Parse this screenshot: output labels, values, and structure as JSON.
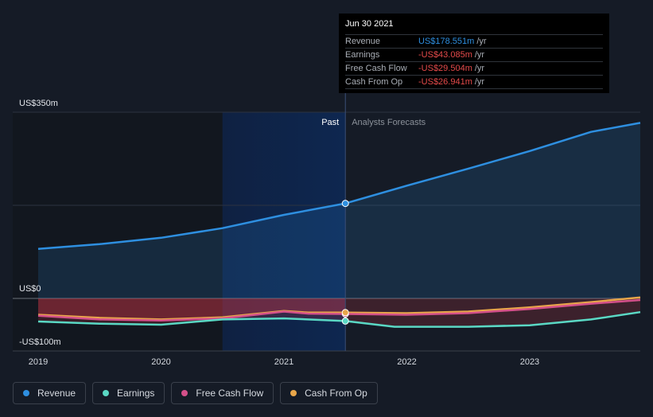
{
  "chart_data": {
    "type": "line",
    "x_ticks": [
      "2019",
      "2020",
      "2021",
      "2022",
      "2023"
    ],
    "x_range": [
      2019.0,
      2023.9
    ],
    "ylim": [
      -100,
      350
    ],
    "y_labels": [
      {
        "text": "US$350m",
        "value": 350
      },
      {
        "text": "US$0",
        "value": 0
      },
      {
        "text": "-US$100m",
        "value": -100
      }
    ],
    "past_label": "Past",
    "forecast_label": "Analysts Forecasts",
    "forecast_start": 2021.5,
    "highlight_start": 2020.5,
    "series": [
      {
        "name": "Revenue",
        "color": "#2e8fe0",
        "x": [
          2019.0,
          2019.5,
          2020.0,
          2020.5,
          2021.0,
          2021.5,
          2022.0,
          2022.5,
          2023.0,
          2023.5,
          2023.9
        ],
        "values": [
          93,
          102,
          114,
          132,
          157,
          178.551,
          212,
          244,
          277,
          313,
          330
        ]
      },
      {
        "name": "Earnings",
        "color": "#5ad8c4",
        "x": [
          2019.0,
          2019.5,
          2020.0,
          2020.5,
          2021.0,
          2021.5,
          2021.9,
          2022.5,
          2023.0,
          2023.5,
          2023.9
        ],
        "values": [
          -44,
          -48,
          -50,
          -40,
          -38,
          -43.085,
          -54,
          -54,
          -51,
          -40,
          -26
        ]
      },
      {
        "name": "Free Cash Flow",
        "color": "#d4508a",
        "x": [
          2019.0,
          2019.5,
          2020.0,
          2020.5,
          2021.0,
          2021.2,
          2021.5,
          2022.0,
          2022.5,
          2023.0,
          2023.5,
          2023.9
        ],
        "values": [
          -33,
          -40,
          -42,
          -38,
          -25,
          -29,
          -29.504,
          -31,
          -28,
          -20,
          -10,
          -3
        ]
      },
      {
        "name": "Cash From Op",
        "color": "#e8a64a",
        "x": [
          2019.0,
          2019.5,
          2020.0,
          2020.5,
          2021.0,
          2021.2,
          2021.5,
          2022.0,
          2022.5,
          2023.0,
          2023.5,
          2023.9
        ],
        "values": [
          -31,
          -37,
          -40,
          -36,
          -24,
          -27,
          -26.941,
          -28,
          -25,
          -17,
          -7,
          2
        ]
      }
    ]
  },
  "tooltip": {
    "date": "Jun 30 2021",
    "rows": [
      {
        "name": "Revenue",
        "value": "US$178.551m",
        "unit": "/yr",
        "color": "#2e8fe0"
      },
      {
        "name": "Earnings",
        "value": "-US$43.085m",
        "unit": "/yr",
        "color": "#e64b4b"
      },
      {
        "name": "Free Cash Flow",
        "value": "-US$29.504m",
        "unit": "/yr",
        "color": "#e64b4b"
      },
      {
        "name": "Cash From Op",
        "value": "-US$26.941m",
        "unit": "/yr",
        "color": "#e64b4b"
      }
    ]
  },
  "legend": [
    {
      "label": "Revenue",
      "color": "#2e8fe0"
    },
    {
      "label": "Earnings",
      "color": "#5ad8c4"
    },
    {
      "label": "Free Cash Flow",
      "color": "#d4508a"
    },
    {
      "label": "Cash From Op",
      "color": "#e8a64a"
    }
  ]
}
